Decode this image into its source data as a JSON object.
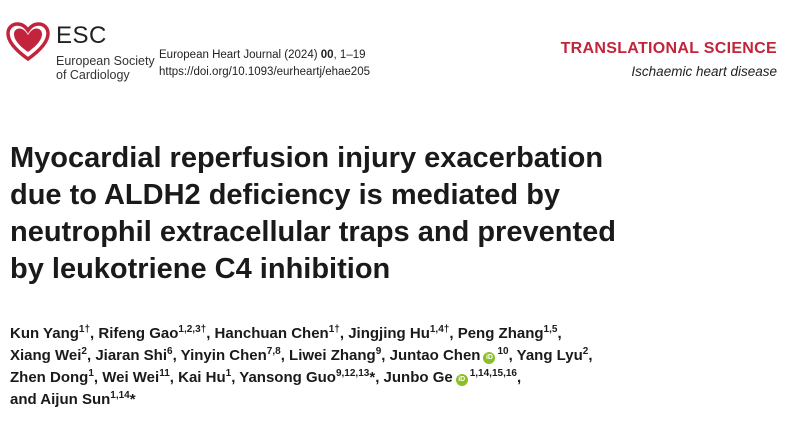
{
  "header": {
    "logo": {
      "abbr": "ESC",
      "line1": "European Society",
      "line2": "of Cardiology"
    },
    "journal": {
      "name_prefix": "European Heart Journal (2024) ",
      "volume": "00",
      "pages": ", 1–19",
      "doi": "https://doi.org/10.1093/eurheartj/ehae205"
    },
    "section": {
      "title": "TRANSLATIONAL SCIENCE",
      "subtitle": "Ischaemic heart disease"
    },
    "colors": {
      "brand_red": "#c2243b",
      "orcid_green": "#8cbf26"
    }
  },
  "article": {
    "title_lines": [
      "Myocardial reperfusion injury exacerbation",
      "due to ALDH2 deficiency is mediated by",
      "neutrophil extracellular traps and prevented",
      "by leukotriene C4 inhibition"
    ],
    "author_lines": [
      [
        {
          "name": "Kun Yang",
          "sup": "1†",
          "sep": ", "
        },
        {
          "name": "Rifeng Gao",
          "sup": "1,2,3†",
          "sep": ", "
        },
        {
          "name": "Hanchuan Chen",
          "sup": "1†",
          "sep": ", "
        },
        {
          "name": "Jingjing Hu",
          "sup": "1,4†",
          "sep": ", "
        },
        {
          "name": "Peng Zhang",
          "sup": "1,5",
          "sep": ","
        }
      ],
      [
        {
          "name": "Xiang Wei",
          "sup": "2",
          "sep": ", "
        },
        {
          "name": "Jiaran Shi",
          "sup": "6",
          "sep": ", "
        },
        {
          "name": "Yinyin Chen",
          "sup": "7,8",
          "sep": ", "
        },
        {
          "name": "Liwei Zhang",
          "sup": "9",
          "sep": ", "
        },
        {
          "name": "Juntao Chen",
          "orcid": true,
          "sup": "10",
          "sep": ", "
        },
        {
          "name": "Yang Lyu",
          "sup": "2",
          "sep": ","
        }
      ],
      [
        {
          "name": "Zhen Dong",
          "sup": "1",
          "sep": ", "
        },
        {
          "name": "Wei Wei",
          "sup": "11",
          "sep": ", "
        },
        {
          "name": "Kai Hu",
          "sup": "1",
          "sep": ", "
        },
        {
          "name": "Yansong Guo",
          "sup": "9,12,13",
          "mark": "*",
          "sep": ", "
        },
        {
          "name": "Junbo Ge",
          "orcid": true,
          "sup": "1,14,15,16",
          "sep": ","
        }
      ],
      [
        {
          "name": "and Aijun Sun",
          "sup": "1,14",
          "mark": "*",
          "sep": ""
        }
      ]
    ],
    "orcid_icon_label": "iD"
  }
}
